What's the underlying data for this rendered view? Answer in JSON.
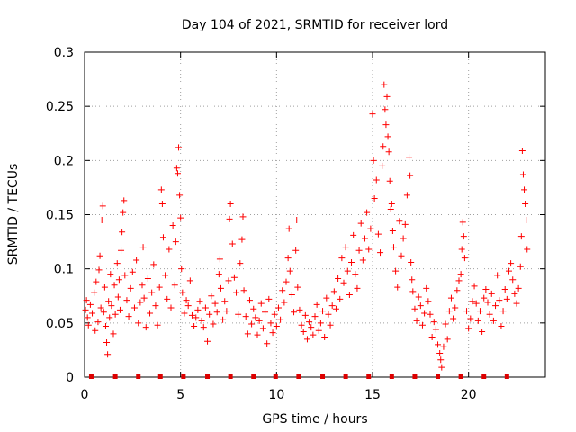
{
  "chart_data": {
    "type": "scatter",
    "title": "Day 104 of 2021, SRMTID for receiver lord",
    "xlabel": "GPS time / hours",
    "ylabel": "SRMTID / TECUs",
    "xlim": [
      0,
      24
    ],
    "ylim": [
      0,
      0.3
    ],
    "grid": true,
    "x_ticks": [
      0,
      5,
      10,
      15,
      20
    ],
    "x_tick_labels": [
      "0",
      "5",
      "10",
      "15",
      "20"
    ],
    "y_ticks": [
      0,
      0.05,
      0.1,
      0.15,
      0.2,
      0.25,
      0.3
    ],
    "y_tick_labels": [
      "0",
      "0.05",
      "0.1",
      "0.15",
      "0.2",
      "0.25",
      "0.3"
    ],
    "marker": "plus",
    "series_color": "#ff0000",
    "marker_color": "#dd0000",
    "baseline_markers": {
      "y": 0,
      "x": [
        0.35,
        1.6,
        2.8,
        3.95,
        5.15,
        6.4,
        7.6,
        8.8,
        9.95,
        11.15,
        12.4,
        13.6,
        14.8,
        16.0,
        17.2,
        18.4,
        19.6,
        20.8,
        22.0
      ]
    },
    "series": [
      {
        "name": "SRMTID",
        "points": [
          [
            0.05,
            0.062
          ],
          [
            0.1,
            0.071
          ],
          [
            0.15,
            0.055
          ],
          [
            0.2,
            0.048
          ],
          [
            0.3,
            0.067
          ],
          [
            0.4,
            0.059
          ],
          [
            0.5,
            0.078
          ],
          [
            0.55,
            0.043
          ],
          [
            0.6,
            0.088
          ],
          [
            0.7,
            0.051
          ],
          [
            0.75,
            0.099
          ],
          [
            0.8,
            0.112
          ],
          [
            0.85,
            0.064
          ],
          [
            0.9,
            0.145
          ],
          [
            0.95,
            0.158
          ],
          [
            1.0,
            0.06
          ],
          [
            1.05,
            0.083
          ],
          [
            1.1,
            0.047
          ],
          [
            1.15,
            0.032
          ],
          [
            1.2,
            0.021
          ],
          [
            1.25,
            0.07
          ],
          [
            1.3,
            0.055
          ],
          [
            1.35,
            0.095
          ],
          [
            1.4,
            0.066
          ],
          [
            1.5,
            0.04
          ],
          [
            1.55,
            0.085
          ],
          [
            1.6,
            0.058
          ],
          [
            1.7,
            0.105
          ],
          [
            1.75,
            0.074
          ],
          [
            1.8,
            0.09
          ],
          [
            1.85,
            0.062
          ],
          [
            1.9,
            0.117
          ],
          [
            1.95,
            0.134
          ],
          [
            2.0,
            0.152
          ],
          [
            2.05,
            0.163
          ],
          [
            2.1,
            0.094
          ],
          [
            2.2,
            0.071
          ],
          [
            2.3,
            0.056
          ],
          [
            2.4,
            0.082
          ],
          [
            2.5,
            0.097
          ],
          [
            2.6,
            0.064
          ],
          [
            2.7,
            0.108
          ],
          [
            2.8,
            0.05
          ],
          [
            2.9,
            0.069
          ],
          [
            3.0,
            0.085
          ],
          [
            3.05,
            0.12
          ],
          [
            3.1,
            0.073
          ],
          [
            3.2,
            0.046
          ],
          [
            3.3,
            0.091
          ],
          [
            3.4,
            0.059
          ],
          [
            3.5,
            0.078
          ],
          [
            3.6,
            0.104
          ],
          [
            3.7,
            0.066
          ],
          [
            3.8,
            0.048
          ],
          [
            3.9,
            0.083
          ],
          [
            4.0,
            0.173
          ],
          [
            4.05,
            0.16
          ],
          [
            4.1,
            0.129
          ],
          [
            4.2,
            0.094
          ],
          [
            4.3,
            0.072
          ],
          [
            4.4,
            0.118
          ],
          [
            4.5,
            0.064
          ],
          [
            4.6,
            0.14
          ],
          [
            4.7,
            0.085
          ],
          [
            4.75,
            0.125
          ],
          [
            4.8,
            0.193
          ],
          [
            4.85,
            0.188
          ],
          [
            4.9,
            0.212
          ],
          [
            4.95,
            0.168
          ],
          [
            5.0,
            0.147
          ],
          [
            5.05,
            0.1
          ],
          [
            5.1,
            0.078
          ],
          [
            5.2,
            0.059
          ],
          [
            5.3,
            0.071
          ],
          [
            5.4,
            0.066
          ],
          [
            5.5,
            0.089
          ],
          [
            5.6,
            0.057
          ],
          [
            5.7,
            0.047
          ],
          [
            5.8,
            0.055
          ],
          [
            5.9,
            0.062
          ],
          [
            6.0,
            0.07
          ],
          [
            6.1,
            0.052
          ],
          [
            6.2,
            0.046
          ],
          [
            6.3,
            0.064
          ],
          [
            6.4,
            0.033
          ],
          [
            6.5,
            0.058
          ],
          [
            6.6,
            0.075
          ],
          [
            6.7,
            0.049
          ],
          [
            6.8,
            0.068
          ],
          [
            6.9,
            0.06
          ],
          [
            7.0,
            0.095
          ],
          [
            7.05,
            0.109
          ],
          [
            7.1,
            0.082
          ],
          [
            7.2,
            0.053
          ],
          [
            7.3,
            0.07
          ],
          [
            7.4,
            0.061
          ],
          [
            7.5,
            0.089
          ],
          [
            7.55,
            0.146
          ],
          [
            7.6,
            0.16
          ],
          [
            7.7,
            0.123
          ],
          [
            7.8,
            0.092
          ],
          [
            7.9,
            0.078
          ],
          [
            8.0,
            0.058
          ],
          [
            8.1,
            0.105
          ],
          [
            8.2,
            0.127
          ],
          [
            8.25,
            0.148
          ],
          [
            8.3,
            0.08
          ],
          [
            8.4,
            0.056
          ],
          [
            8.5,
            0.04
          ],
          [
            8.6,
            0.071
          ],
          [
            8.7,
            0.049
          ],
          [
            8.8,
            0.063
          ],
          [
            8.9,
            0.055
          ],
          [
            9.0,
            0.039
          ],
          [
            9.1,
            0.052
          ],
          [
            9.2,
            0.068
          ],
          [
            9.3,
            0.045
          ],
          [
            9.4,
            0.06
          ],
          [
            9.5,
            0.031
          ],
          [
            9.6,
            0.072
          ],
          [
            9.7,
            0.05
          ],
          [
            9.8,
            0.041
          ],
          [
            9.9,
            0.058
          ],
          [
            10.0,
            0.047
          ],
          [
            10.1,
            0.064
          ],
          [
            10.2,
            0.053
          ],
          [
            10.3,
            0.08
          ],
          [
            10.4,
            0.069
          ],
          [
            10.5,
            0.088
          ],
          [
            10.6,
            0.11
          ],
          [
            10.65,
            0.137
          ],
          [
            10.7,
            0.098
          ],
          [
            10.8,
            0.076
          ],
          [
            10.9,
            0.06
          ],
          [
            11.0,
            0.117
          ],
          [
            11.05,
            0.145
          ],
          [
            11.1,
            0.083
          ],
          [
            11.2,
            0.062
          ],
          [
            11.3,
            0.048
          ],
          [
            11.4,
            0.042
          ],
          [
            11.5,
            0.057
          ],
          [
            11.6,
            0.035
          ],
          [
            11.7,
            0.051
          ],
          [
            11.8,
            0.046
          ],
          [
            11.9,
            0.039
          ],
          [
            12.0,
            0.056
          ],
          [
            12.1,
            0.067
          ],
          [
            12.2,
            0.043
          ],
          [
            12.3,
            0.05
          ],
          [
            12.4,
            0.061
          ],
          [
            12.5,
            0.037
          ],
          [
            12.6,
            0.073
          ],
          [
            12.7,
            0.058
          ],
          [
            12.8,
            0.048
          ],
          [
            12.9,
            0.066
          ],
          [
            13.0,
            0.079
          ],
          [
            13.1,
            0.063
          ],
          [
            13.2,
            0.091
          ],
          [
            13.3,
            0.072
          ],
          [
            13.4,
            0.11
          ],
          [
            13.5,
            0.087
          ],
          [
            13.6,
            0.12
          ],
          [
            13.7,
            0.098
          ],
          [
            13.8,
            0.076
          ],
          [
            13.9,
            0.106
          ],
          [
            14.0,
            0.131
          ],
          [
            14.1,
            0.095
          ],
          [
            14.2,
            0.082
          ],
          [
            14.3,
            0.117
          ],
          [
            14.4,
            0.142
          ],
          [
            14.5,
            0.108
          ],
          [
            14.6,
            0.128
          ],
          [
            14.7,
            0.152
          ],
          [
            14.8,
            0.118
          ],
          [
            14.9,
            0.137
          ],
          [
            15.0,
            0.243
          ],
          [
            15.05,
            0.2
          ],
          [
            15.1,
            0.165
          ],
          [
            15.2,
            0.182
          ],
          [
            15.3,
            0.132
          ],
          [
            15.4,
            0.115
          ],
          [
            15.5,
            0.195
          ],
          [
            15.55,
            0.213
          ],
          [
            15.6,
            0.27
          ],
          [
            15.65,
            0.247
          ],
          [
            15.7,
            0.233
          ],
          [
            15.75,
            0.259
          ],
          [
            15.8,
            0.222
          ],
          [
            15.85,
            0.208
          ],
          [
            15.9,
            0.181
          ],
          [
            15.95,
            0.155
          ],
          [
            16.0,
            0.16
          ],
          [
            16.05,
            0.135
          ],
          [
            16.1,
            0.12
          ],
          [
            16.2,
            0.098
          ],
          [
            16.3,
            0.083
          ],
          [
            16.4,
            0.144
          ],
          [
            16.5,
            0.112
          ],
          [
            16.6,
            0.128
          ],
          [
            16.7,
            0.141
          ],
          [
            16.8,
            0.168
          ],
          [
            16.9,
            0.203
          ],
          [
            16.95,
            0.186
          ],
          [
            17.0,
            0.106
          ],
          [
            17.05,
            0.09
          ],
          [
            17.1,
            0.079
          ],
          [
            17.2,
            0.063
          ],
          [
            17.3,
            0.052
          ],
          [
            17.4,
            0.074
          ],
          [
            17.5,
            0.066
          ],
          [
            17.6,
            0.048
          ],
          [
            17.7,
            0.059
          ],
          [
            17.8,
            0.082
          ],
          [
            17.9,
            0.07
          ],
          [
            18.0,
            0.058
          ],
          [
            18.1,
            0.037
          ],
          [
            18.2,
            0.051
          ],
          [
            18.3,
            0.044
          ],
          [
            18.4,
            0.03
          ],
          [
            18.5,
            0.022
          ],
          [
            18.55,
            0.016
          ],
          [
            18.6,
            0.009
          ],
          [
            18.7,
            0.028
          ],
          [
            18.8,
            0.049
          ],
          [
            18.9,
            0.035
          ],
          [
            19.0,
            0.061
          ],
          [
            19.1,
            0.073
          ],
          [
            19.2,
            0.054
          ],
          [
            19.3,
            0.064
          ],
          [
            19.4,
            0.08
          ],
          [
            19.5,
            0.089
          ],
          [
            19.6,
            0.095
          ],
          [
            19.65,
            0.118
          ],
          [
            19.7,
            0.143
          ],
          [
            19.75,
            0.13
          ],
          [
            19.8,
            0.11
          ],
          [
            19.9,
            0.061
          ],
          [
            20.0,
            0.045
          ],
          [
            20.1,
            0.054
          ],
          [
            20.2,
            0.07
          ],
          [
            20.3,
            0.084
          ],
          [
            20.4,
            0.068
          ],
          [
            20.5,
            0.052
          ],
          [
            20.6,
            0.061
          ],
          [
            20.7,
            0.042
          ],
          [
            20.8,
            0.073
          ],
          [
            20.9,
            0.081
          ],
          [
            21.0,
            0.069
          ],
          [
            21.1,
            0.058
          ],
          [
            21.2,
            0.077
          ],
          [
            21.3,
            0.052
          ],
          [
            21.4,
            0.066
          ],
          [
            21.5,
            0.094
          ],
          [
            21.6,
            0.071
          ],
          [
            21.7,
            0.047
          ],
          [
            21.8,
            0.061
          ],
          [
            21.9,
            0.081
          ],
          [
            22.0,
            0.072
          ],
          [
            22.1,
            0.098
          ],
          [
            22.2,
            0.105
          ],
          [
            22.3,
            0.09
          ],
          [
            22.4,
            0.077
          ],
          [
            22.5,
            0.068
          ],
          [
            22.6,
            0.082
          ],
          [
            22.7,
            0.102
          ],
          [
            22.75,
            0.13
          ],
          [
            22.8,
            0.209
          ],
          [
            22.85,
            0.187
          ],
          [
            22.9,
            0.173
          ],
          [
            22.95,
            0.16
          ],
          [
            23.0,
            0.145
          ],
          [
            23.05,
            0.118
          ]
        ]
      }
    ]
  }
}
